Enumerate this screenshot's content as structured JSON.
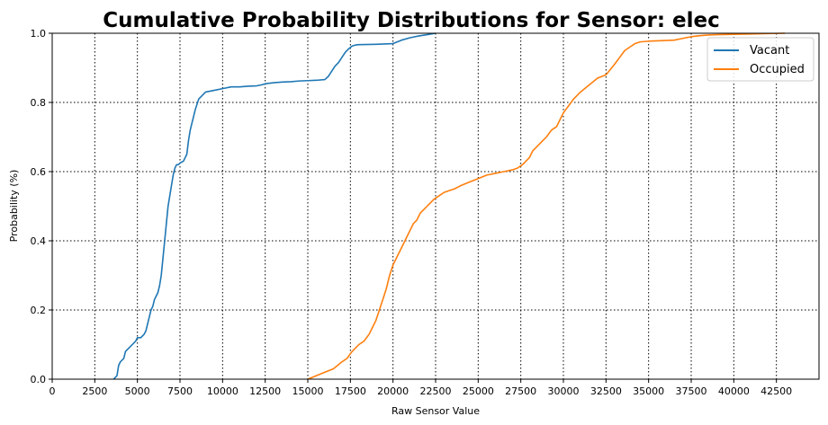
{
  "chart_data": {
    "type": "line",
    "title": "Cumulative Probability Distributions for Sensor: elec",
    "xlabel": "Raw Sensor Value",
    "ylabel": "Probability (%)",
    "xlim": [
      0,
      45000
    ],
    "ylim": [
      0,
      1.0
    ],
    "xticks": [
      0,
      2500,
      5000,
      7500,
      10000,
      12500,
      15000,
      17500,
      20000,
      22500,
      25000,
      27500,
      30000,
      32500,
      35000,
      37500,
      40000,
      42500
    ],
    "yticks": [
      0.0,
      0.2,
      0.4,
      0.6,
      0.8,
      1.0
    ],
    "grid": true,
    "legend_position": "top-right",
    "series": [
      {
        "name": "Vacant",
        "color": "#1f77b4",
        "x": [
          3600,
          3800,
          3900,
          4000,
          4200,
          4300,
          4500,
          4700,
          4900,
          5000,
          5200,
          5400,
          5500,
          5700,
          5800,
          5900,
          6000,
          6100,
          6200,
          6300,
          6400,
          6500,
          6600,
          6700,
          6800,
          6900,
          7000,
          7100,
          7200,
          7300,
          7400,
          7500,
          7700,
          7900,
          8000,
          8100,
          8200,
          8300,
          8400,
          8600,
          8800,
          9000,
          9500,
          10000,
          10500,
          11000,
          11500,
          12000,
          12300,
          12500,
          13000,
          13500,
          14000,
          14500,
          15000,
          15500,
          16000,
          16200,
          16400,
          16600,
          16800,
          17000,
          17200,
          17400,
          17600,
          17800,
          18000,
          19000,
          20000,
          20500,
          21000,
          21500,
          22000,
          22500
        ],
        "y": [
          0.0,
          0.01,
          0.04,
          0.05,
          0.06,
          0.08,
          0.09,
          0.1,
          0.11,
          0.12,
          0.12,
          0.13,
          0.14,
          0.18,
          0.2,
          0.21,
          0.23,
          0.24,
          0.25,
          0.27,
          0.3,
          0.35,
          0.4,
          0.45,
          0.5,
          0.53,
          0.56,
          0.59,
          0.61,
          0.62,
          0.62,
          0.625,
          0.63,
          0.65,
          0.69,
          0.72,
          0.74,
          0.76,
          0.78,
          0.81,
          0.82,
          0.83,
          0.835,
          0.84,
          0.845,
          0.845,
          0.847,
          0.848,
          0.851,
          0.854,
          0.857,
          0.859,
          0.86,
          0.862,
          0.863,
          0.864,
          0.866,
          0.875,
          0.89,
          0.905,
          0.915,
          0.93,
          0.945,
          0.955,
          0.963,
          0.966,
          0.967,
          0.968,
          0.97,
          0.98,
          0.987,
          0.992,
          0.996,
          1.0
        ]
      },
      {
        "name": "Occupied",
        "color": "#ff7f0e",
        "x": [
          15000,
          15500,
          16000,
          16500,
          17000,
          17300,
          17600,
          17800,
          18000,
          18300,
          18600,
          18800,
          19000,
          19200,
          19400,
          19600,
          19800,
          20000,
          20200,
          20400,
          20600,
          20800,
          21000,
          21200,
          21400,
          21600,
          21800,
          22000,
          22200,
          22400,
          22700,
          23000,
          23300,
          23600,
          24000,
          24500,
          25000,
          25500,
          26000,
          26500,
          27000,
          27300,
          27600,
          27800,
          28000,
          28200,
          28400,
          28600,
          28800,
          29000,
          29300,
          29600,
          29800,
          30000,
          30300,
          30600,
          31000,
          31500,
          32000,
          32500,
          33000,
          33300,
          33600,
          33900,
          34200,
          34500,
          35000,
          35500,
          36000,
          36500,
          37000,
          37500,
          38000,
          38500,
          39000,
          40000,
          41000,
          42000,
          43000
        ],
        "y": [
          0.0,
          0.01,
          0.02,
          0.03,
          0.05,
          0.06,
          0.08,
          0.09,
          0.1,
          0.11,
          0.13,
          0.15,
          0.17,
          0.2,
          0.23,
          0.26,
          0.3,
          0.33,
          0.35,
          0.37,
          0.39,
          0.41,
          0.43,
          0.45,
          0.46,
          0.48,
          0.49,
          0.5,
          0.51,
          0.52,
          0.53,
          0.54,
          0.545,
          0.55,
          0.56,
          0.57,
          0.58,
          0.59,
          0.595,
          0.6,
          0.605,
          0.61,
          0.62,
          0.63,
          0.64,
          0.66,
          0.67,
          0.68,
          0.69,
          0.7,
          0.72,
          0.73,
          0.75,
          0.77,
          0.79,
          0.81,
          0.83,
          0.85,
          0.87,
          0.88,
          0.91,
          0.93,
          0.95,
          0.96,
          0.97,
          0.975,
          0.977,
          0.978,
          0.979,
          0.98,
          0.985,
          0.99,
          0.993,
          0.995,
          0.996,
          0.997,
          0.998,
          0.999,
          1.0
        ]
      }
    ]
  }
}
